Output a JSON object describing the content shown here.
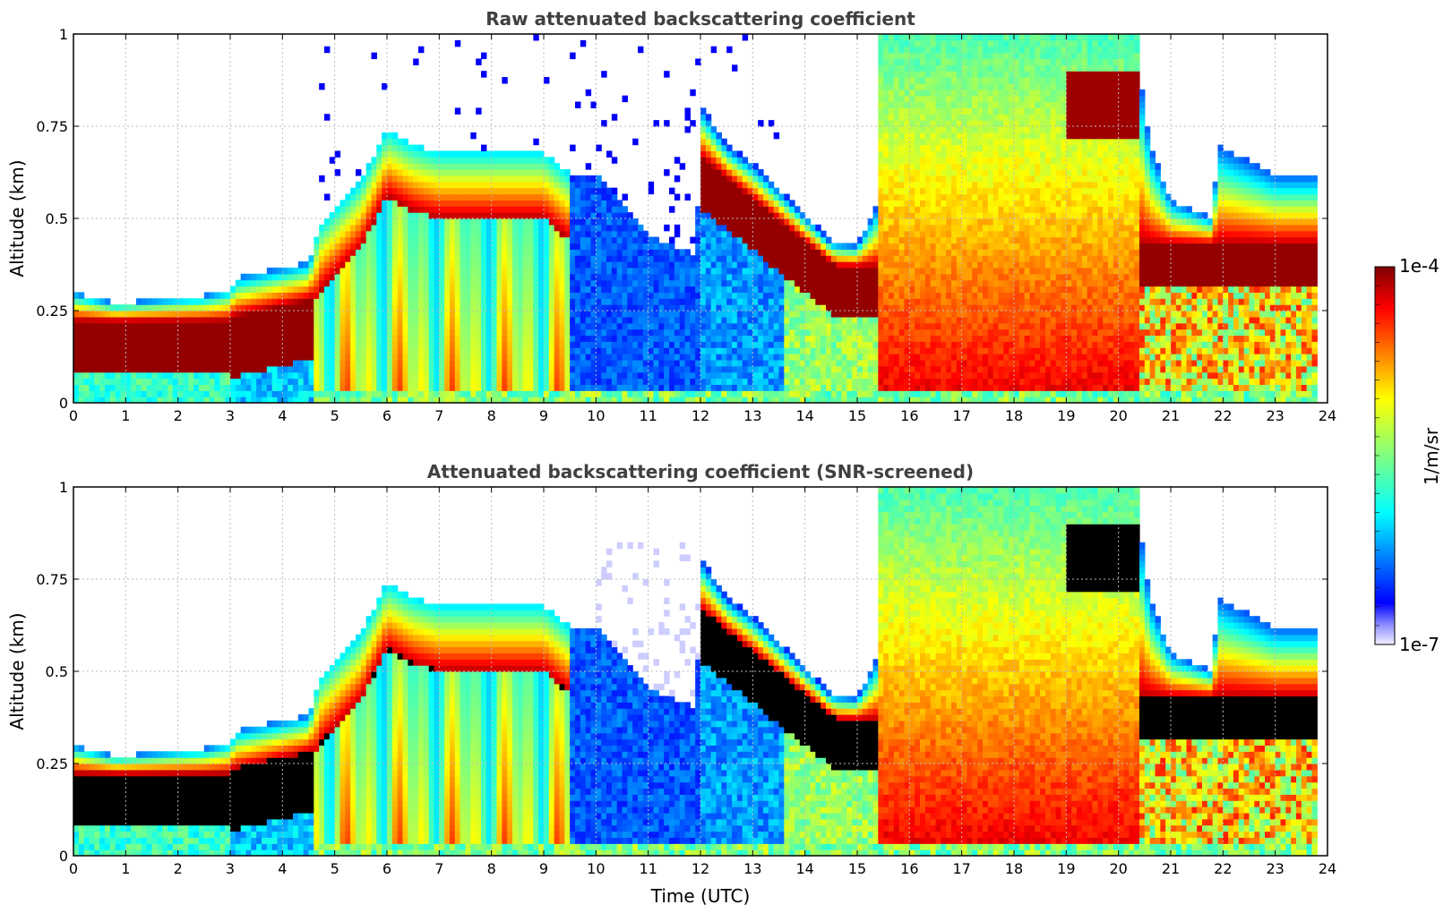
{
  "chart_data": [
    {
      "type": "heatmap",
      "title": "Raw attenuated backscattering coefficient",
      "xlabel": "",
      "ylabel": "Altitude (km)",
      "xlim": [
        0,
        24
      ],
      "ylim": [
        0,
        1
      ],
      "xticks": [
        "0",
        "1",
        "2",
        "3",
        "4",
        "5",
        "6",
        "7",
        "8",
        "9",
        "10",
        "11",
        "12",
        "13",
        "14",
        "15",
        "16",
        "17",
        "18",
        "19",
        "20",
        "21",
        "22",
        "23",
        "24"
      ],
      "yticks": [
        "0",
        "0.25",
        "0.5",
        "0.75",
        "1"
      ],
      "grid": true,
      "variant": "raw",
      "regions": [
        {
          "name": "stable morning layer",
          "t_start": 0,
          "t_end": 4.6,
          "layer_bottom_km": 0.08,
          "layer_top_km": 0.28,
          "intensity": "high"
        },
        {
          "name": "growing boundary layer",
          "t_start": 4.6,
          "t_end": 9.5,
          "top_km": 0.72,
          "intensity": "high"
        },
        {
          "name": "weak signal period",
          "t_start": 9.5,
          "t_end": 13.6,
          "top_km": 0.45,
          "intensity": "low"
        },
        {
          "name": "residual layer",
          "t_start": 12,
          "t_end": 15.4,
          "top_km": 0.8,
          "intensity": "high"
        },
        {
          "name": "fog / precipitation",
          "t_start": 15.5,
          "t_end": 20.4,
          "top_km": 1.0,
          "intensity": "medium"
        },
        {
          "name": "evening layer",
          "t_start": 20.4,
          "t_end": 23.8,
          "top_km": 0.65,
          "intensity": "high"
        }
      ]
    },
    {
      "type": "heatmap",
      "title": "Attenuated backscattering coefficient (SNR-screened)",
      "xlabel": "Time (UTC)",
      "ylabel": "Altitude (km)",
      "xlim": [
        0,
        24
      ],
      "ylim": [
        0,
        1
      ],
      "xticks": [
        "0",
        "1",
        "2",
        "3",
        "4",
        "5",
        "6",
        "7",
        "8",
        "9",
        "10",
        "11",
        "12",
        "13",
        "14",
        "15",
        "16",
        "17",
        "18",
        "19",
        "20",
        "21",
        "22",
        "23",
        "24"
      ],
      "yticks": [
        "0",
        "0.25",
        "0.5",
        "0.75",
        "1"
      ],
      "grid": true,
      "variant": "screened",
      "saturated_color": "#000000"
    }
  ],
  "colorbar": {
    "label": "1/m/sr",
    "max_label": "1e-4",
    "min_label": "1e-7",
    "min": 1e-07,
    "max": 0.0001,
    "scale": "log",
    "colormap": "jet"
  },
  "colors": {
    "title": "#404040",
    "grid": "#bbbbbb",
    "background": "#ffffff"
  }
}
